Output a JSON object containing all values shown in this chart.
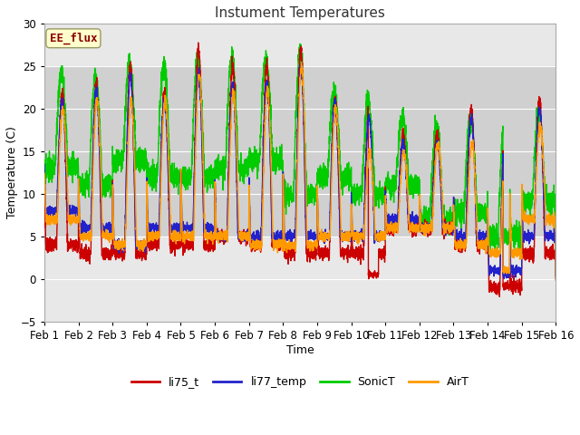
{
  "title": "Instument Temperatures",
  "xlabel": "Time",
  "ylabel": "Temperature (C)",
  "ylim": [
    -5,
    30
  ],
  "xlim": [
    0,
    15
  ],
  "xtick_labels": [
    "Feb 1",
    "Feb 2",
    "Feb 3",
    "Feb 4",
    "Feb 5",
    "Feb 6",
    "Feb 7",
    "Feb 8",
    "Feb 9",
    "Feb 10",
    "Feb 11",
    "Feb 12",
    "Feb 13",
    "Feb 14",
    "Feb 15",
    "Feb 16"
  ],
  "xtick_positions": [
    0,
    1,
    2,
    3,
    4,
    5,
    6,
    7,
    8,
    9,
    10,
    11,
    12,
    13,
    14,
    15
  ],
  "plot_bg": "#e8e8e8",
  "band_color": "#d0d0d0",
  "band_range": [
    5.0,
    25.0
  ],
  "grid_color": "#ffffff",
  "legend_labels": [
    "li75_t",
    "li77_temp",
    "SonicT",
    "AirT"
  ],
  "legend_colors": [
    "#cc0000",
    "#2222cc",
    "#00cc00",
    "#ff9900"
  ],
  "annotation_text": "EE_flux",
  "annotation_color": "#8b0000",
  "annotation_bg": "#ffffcc",
  "line_width": 1.0,
  "ytick_positions": [
    -5,
    0,
    5,
    10,
    15,
    20,
    25,
    30
  ],
  "figwidth": 6.4,
  "figheight": 4.8,
  "dpi": 100
}
